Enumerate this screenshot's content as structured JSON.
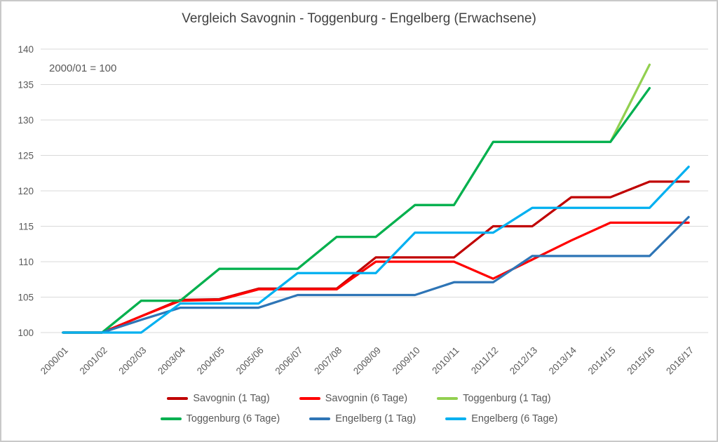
{
  "title": "Vergleich Savognin - Toggenburg - Engelberg (Erwachsene)",
  "note": "2000/01 = 100",
  "colors": {
    "grid": "#d9d9d9",
    "axis_text": "#595959",
    "title_text": "#404040"
  },
  "chart_data": {
    "type": "line",
    "title": "Vergleich Savognin - Toggenburg - Engelberg (Erwachsene)",
    "annotation": "2000/01 = 100",
    "xlabel": "",
    "ylabel": "",
    "ylim": [
      100,
      140
    ],
    "ytick_step": 5,
    "yticks": [
      100,
      105,
      110,
      115,
      120,
      125,
      130,
      135,
      140
    ],
    "grid": "horizontal",
    "legend_position": "bottom",
    "categories": [
      "2000/01",
      "2001/02",
      "2002/03",
      "2003/04",
      "2004/05",
      "2005/06",
      "2006/07",
      "2007/08",
      "2008/09",
      "2009/10",
      "2010/11",
      "2011/12",
      "2012/13",
      "2013/14",
      "2014/15",
      "2015/16",
      "2016/17"
    ],
    "series": [
      {
        "name": "Savognin (1 Tag)",
        "color": "#C00000",
        "values": [
          100,
          100,
          102.3,
          104.6,
          104.7,
          106.2,
          106.2,
          106.2,
          110.6,
          110.6,
          110.6,
          115.0,
          115.0,
          119.1,
          119.1,
          121.3,
          121.3
        ]
      },
      {
        "name": "Savognin (6 Tage)",
        "color": "#FF0000",
        "values": [
          100,
          100,
          102.3,
          104.5,
          104.6,
          106.1,
          106.1,
          106.1,
          110.0,
          110.0,
          110.0,
          107.6,
          110.3,
          113.0,
          115.5,
          115.5,
          115.5
        ]
      },
      {
        "name": "Toggenburg (1 Tag)",
        "color": "#92D050",
        "values": [
          100,
          100,
          104.5,
          104.5,
          109,
          109,
          109,
          113.5,
          113.5,
          118,
          118,
          126.9,
          126.9,
          126.9,
          126.9,
          137.8,
          null
        ]
      },
      {
        "name": "Toggenburg (6 Tage)",
        "color": "#00B050",
        "values": [
          100,
          100,
          104.5,
          104.5,
          109,
          109,
          109,
          113.5,
          113.5,
          118,
          118,
          126.9,
          126.9,
          126.9,
          126.9,
          134.5,
          null
        ]
      },
      {
        "name": "Engelberg (1 Tag)",
        "color": "#2E75B6",
        "values": [
          100,
          100,
          101.8,
          103.5,
          103.5,
          103.5,
          105.3,
          105.3,
          105.3,
          105.3,
          107.1,
          107.1,
          110.8,
          110.8,
          110.8,
          110.8,
          116.3
        ]
      },
      {
        "name": "Engelberg (6 Tage)",
        "color": "#00B0F0",
        "values": [
          100,
          100,
          100,
          104.1,
          104.1,
          104.1,
          108.4,
          108.4,
          108.4,
          114.1,
          114.1,
          114.1,
          117.6,
          117.6,
          117.6,
          117.6,
          123.4
        ]
      }
    ]
  }
}
